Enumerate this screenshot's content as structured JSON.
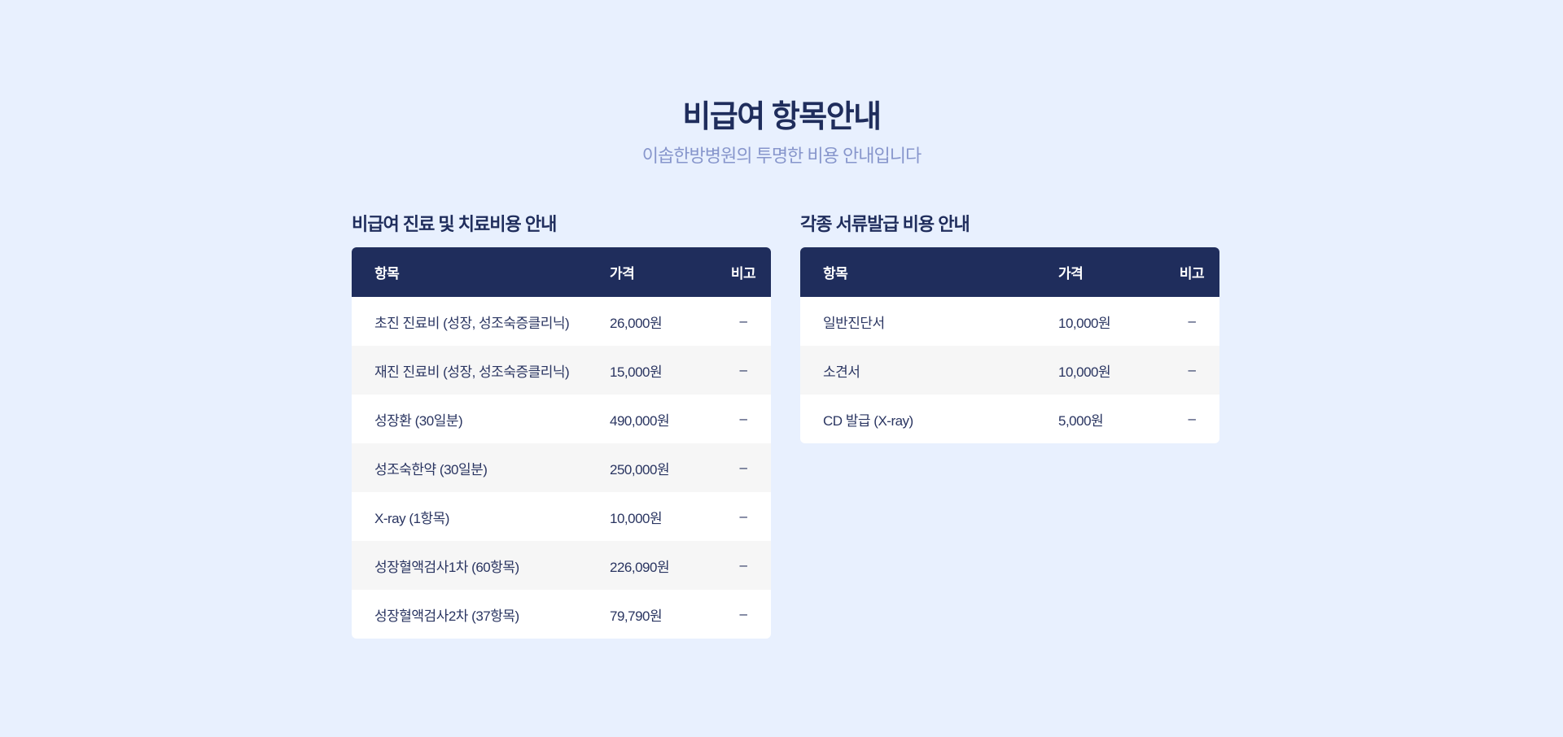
{
  "header": {
    "title": "비급여 항목안내",
    "subtitle": "이솝한방병원의 투명한 비용 안내입니다"
  },
  "colors": {
    "background": "#e8f0fe",
    "navy": "#1f2d5c",
    "subtitle": "#8796cc"
  },
  "treatment": {
    "title": "비급여 진료 및 치료비용 안내",
    "columns": [
      "항목",
      "가격",
      "비고"
    ],
    "rows": [
      {
        "item": "초진 진료비 (성장, 성조숙증클리닉)",
        "price": "26,000원",
        "note": "–"
      },
      {
        "item": "재진 진료비 (성장, 성조숙증클리닉)",
        "price": "15,000원",
        "note": "–"
      },
      {
        "item": "성장환 (30일분)",
        "price": "490,000원",
        "note": "–"
      },
      {
        "item": "성조숙한약 (30일분)",
        "price": "250,000원",
        "note": "–"
      },
      {
        "item": "X-ray (1항목)",
        "price": "10,000원",
        "note": "–"
      },
      {
        "item": "성장혈액검사1차 (60항목)",
        "price": "226,090원",
        "note": "–"
      },
      {
        "item": "성장혈액검사2차 (37항목)",
        "price": "79,790원",
        "note": "–"
      }
    ]
  },
  "documents": {
    "title": "각종 서류발급 비용 안내",
    "columns": [
      "항목",
      "가격",
      "비고"
    ],
    "rows": [
      {
        "item": "일반진단서",
        "price": "10,000원",
        "note": "–"
      },
      {
        "item": "소견서",
        "price": "10,000원",
        "note": "–"
      },
      {
        "item": "CD 발급 (X-ray)",
        "price": "5,000원",
        "note": "–"
      }
    ]
  }
}
